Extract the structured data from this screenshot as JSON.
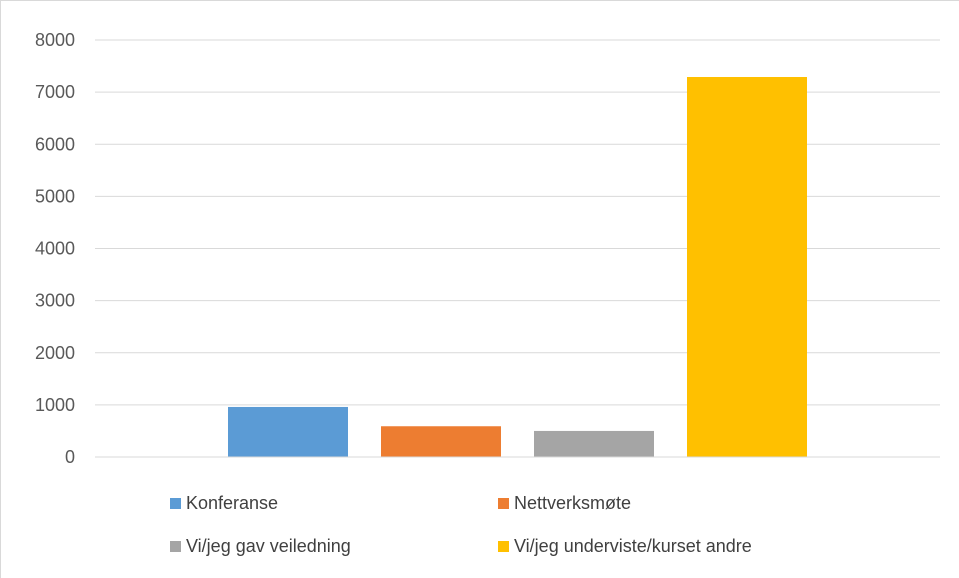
{
  "chart_data": {
    "type": "bar",
    "title": "",
    "xlabel": "",
    "ylabel": "",
    "ylim": [
      0,
      8000
    ],
    "yticks": [
      "0",
      "1000",
      "2000",
      "3000",
      "4000",
      "5000",
      "6000",
      "7000",
      "8000"
    ],
    "grid": true,
    "legend_position": "bottom",
    "series": [
      {
        "name": "Konferanse",
        "value": 960,
        "color": "#5b9bd5"
      },
      {
        "name": "Nettverksmøte",
        "value": 590,
        "color": "#ed7d31"
      },
      {
        "name": "Vi/jeg gav veiledning",
        "value": 500,
        "color": "#a5a5a5"
      },
      {
        "name": "Vi/jeg underviste/kurset andre",
        "value": 7290,
        "color": "#ffc000"
      }
    ],
    "title_color": "#e03c10"
  }
}
